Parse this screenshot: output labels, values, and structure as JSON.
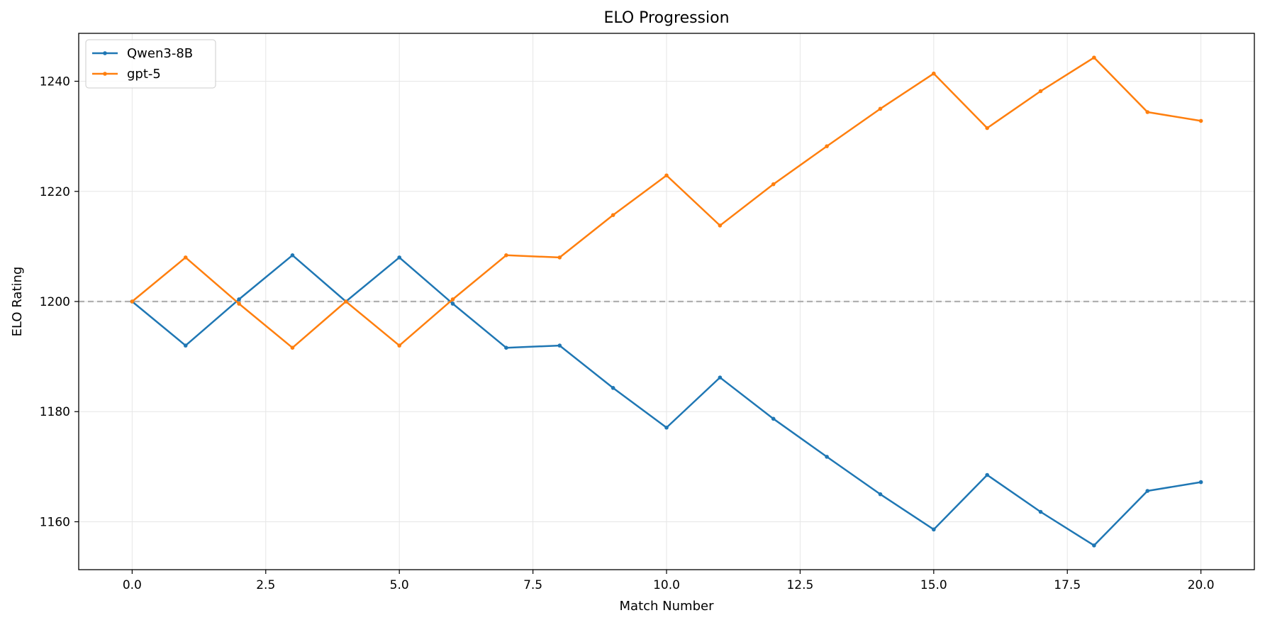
{
  "chart_data": {
    "type": "line",
    "title": "ELO Progression",
    "xlabel": "Match Number",
    "ylabel": "ELO Rating",
    "xlim": [
      -1,
      21
    ],
    "ylim": [
      1151.3,
      1248.7
    ],
    "x_ticks": [
      0.0,
      2.5,
      5.0,
      7.5,
      10.0,
      12.5,
      15.0,
      17.5,
      20.0
    ],
    "x_tick_labels": [
      "0.0",
      "2.5",
      "5.0",
      "7.5",
      "10.0",
      "12.5",
      "15.0",
      "17.5",
      "20.0"
    ],
    "y_ticks": [
      1160,
      1180,
      1200,
      1220,
      1240
    ],
    "y_tick_labels": [
      "1160",
      "1180",
      "1200",
      "1220",
      "1240"
    ],
    "grid": true,
    "legend_position": "top-left",
    "reference_line": {
      "y": 1200,
      "style": "dashed",
      "color": "#b0b0b0"
    },
    "x": [
      0,
      1,
      2,
      3,
      4,
      5,
      6,
      7,
      8,
      9,
      10,
      11,
      12,
      13,
      14,
      15,
      16,
      17,
      18,
      19,
      20
    ],
    "series": [
      {
        "name": "Qwen3-8B",
        "color": "#1f77b4",
        "values": [
          1200.0,
          1192.0,
          1200.4,
          1208.4,
          1200.0,
          1208.0,
          1199.6,
          1191.6,
          1192.0,
          1184.3,
          1177.1,
          1186.2,
          1178.7,
          1171.8,
          1165.0,
          1158.6,
          1168.5,
          1161.8,
          1155.7,
          1165.6,
          1167.2
        ]
      },
      {
        "name": "gpt-5",
        "color": "#ff7f0e",
        "values": [
          1200.0,
          1208.0,
          1199.6,
          1191.6,
          1200.0,
          1192.0,
          1200.4,
          1208.4,
          1208.0,
          1215.7,
          1222.9,
          1213.8,
          1221.3,
          1228.2,
          1235.0,
          1241.4,
          1231.5,
          1238.2,
          1244.3,
          1234.4,
          1232.8
        ]
      }
    ]
  }
}
